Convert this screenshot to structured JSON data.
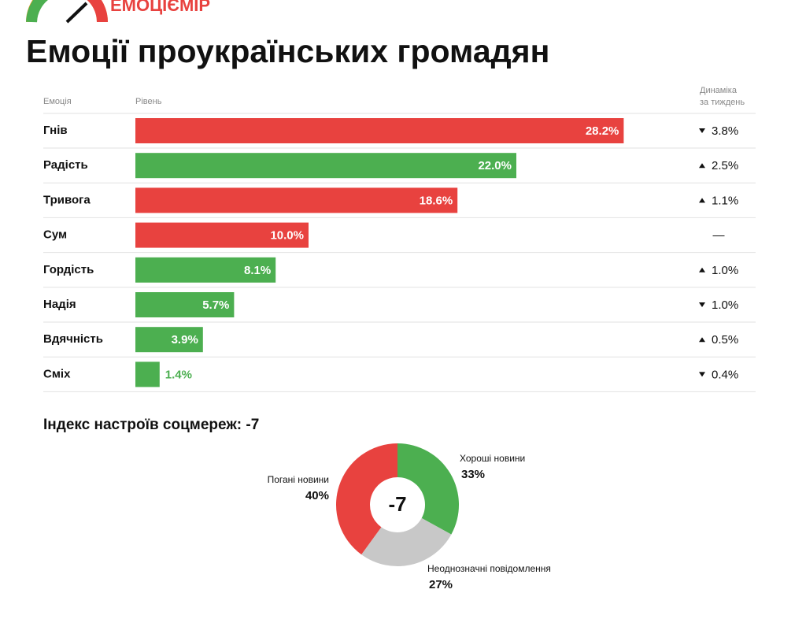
{
  "header": {
    "logo": "ЕМОЦІЄМІР",
    "title": "Емоції проукраїнських громадян"
  },
  "chart_data": [
    {
      "type": "bar",
      "column_labels": {
        "name": "Емоція",
        "level": "Рівень",
        "change": [
          "Динаміка",
          "за тиждень"
        ]
      },
      "categories": [
        "Гнів",
        "Радість",
        "Тривога",
        "Сум",
        "Гордість",
        "Надія",
        "Вдячність",
        "Сміх"
      ],
      "values": [
        28.2,
        22.0,
        18.6,
        10.0,
        8.1,
        5.7,
        3.9,
        1.4
      ],
      "value_labels": [
        "28.2%",
        "22.0%",
        "18.6%",
        "10.0%",
        "8.1%",
        "5.7%",
        "3.9%",
        "1.4%"
      ],
      "colors": [
        "#e8423f",
        "#4caf50",
        "#e8423f",
        "#e8423f",
        "#4caf50",
        "#4caf50",
        "#4caf50",
        "#4caf50"
      ],
      "changes": [
        -3.8,
        2.5,
        1.1,
        null,
        1.0,
        -1.0,
        0.5,
        -0.4
      ],
      "change_labels": [
        "3.8%",
        "2.5%",
        "1.1%",
        "—",
        "1.0%",
        "1.0%",
        "0.5%",
        "0.4%"
      ],
      "xlim": [
        0,
        30
      ]
    },
    {
      "type": "pie",
      "title": "Індекс настроїв соцмереж: -7",
      "center_label": "-7",
      "categories": [
        "Хороші новини",
        "Неоднозначні повідомлення",
        "Погані новини"
      ],
      "values": [
        33,
        27,
        40
      ],
      "value_labels": [
        "33%",
        "27%",
        "40%"
      ],
      "colors": [
        "#4caf50",
        "#c8c8c8",
        "#e8423f"
      ]
    }
  ]
}
